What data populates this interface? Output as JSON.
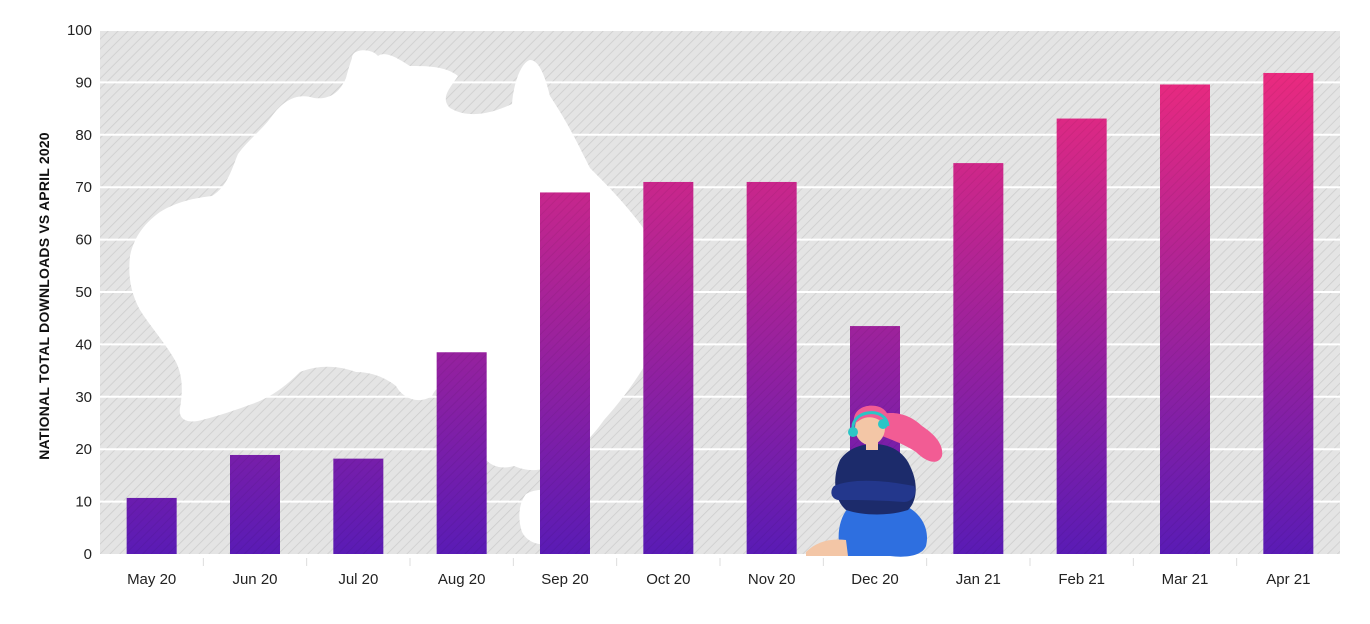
{
  "chart_data": {
    "type": "bar",
    "title": "",
    "xlabel": "",
    "ylabel": "NATIONAL TOTAL DOWNLOADS VS APRIL 2020",
    "ylim": [
      0,
      100
    ],
    "yticks": [
      "0",
      "10",
      "20",
      "30",
      "40",
      "50",
      "60",
      "70",
      "80",
      "90",
      "100"
    ],
    "categories": [
      "May 20",
      "Jun 20",
      "Jul 20",
      "Aug 20",
      "Sep 20",
      "Oct 20",
      "Nov 20",
      "Dec 20",
      "Jan 21",
      "Feb 21",
      "Mar 21",
      "Apr 21"
    ],
    "values": [
      10.7,
      18.9,
      18.2,
      38.5,
      69,
      71,
      71,
      43.5,
      74.6,
      83.1,
      89.6,
      91.8
    ],
    "grid": true,
    "legend": "none"
  },
  "style": {
    "bar_gradient_top": "#f72b7a",
    "bar_gradient_bottom": "#5a1bb5",
    "plot_background": "#e4e4e4",
    "hatch_color": "#cfcfcf",
    "gridline_color": "#ffffff",
    "map_color": "#ffffff",
    "illustration": "woman-with-headphones",
    "background_shape": "australia-map"
  }
}
